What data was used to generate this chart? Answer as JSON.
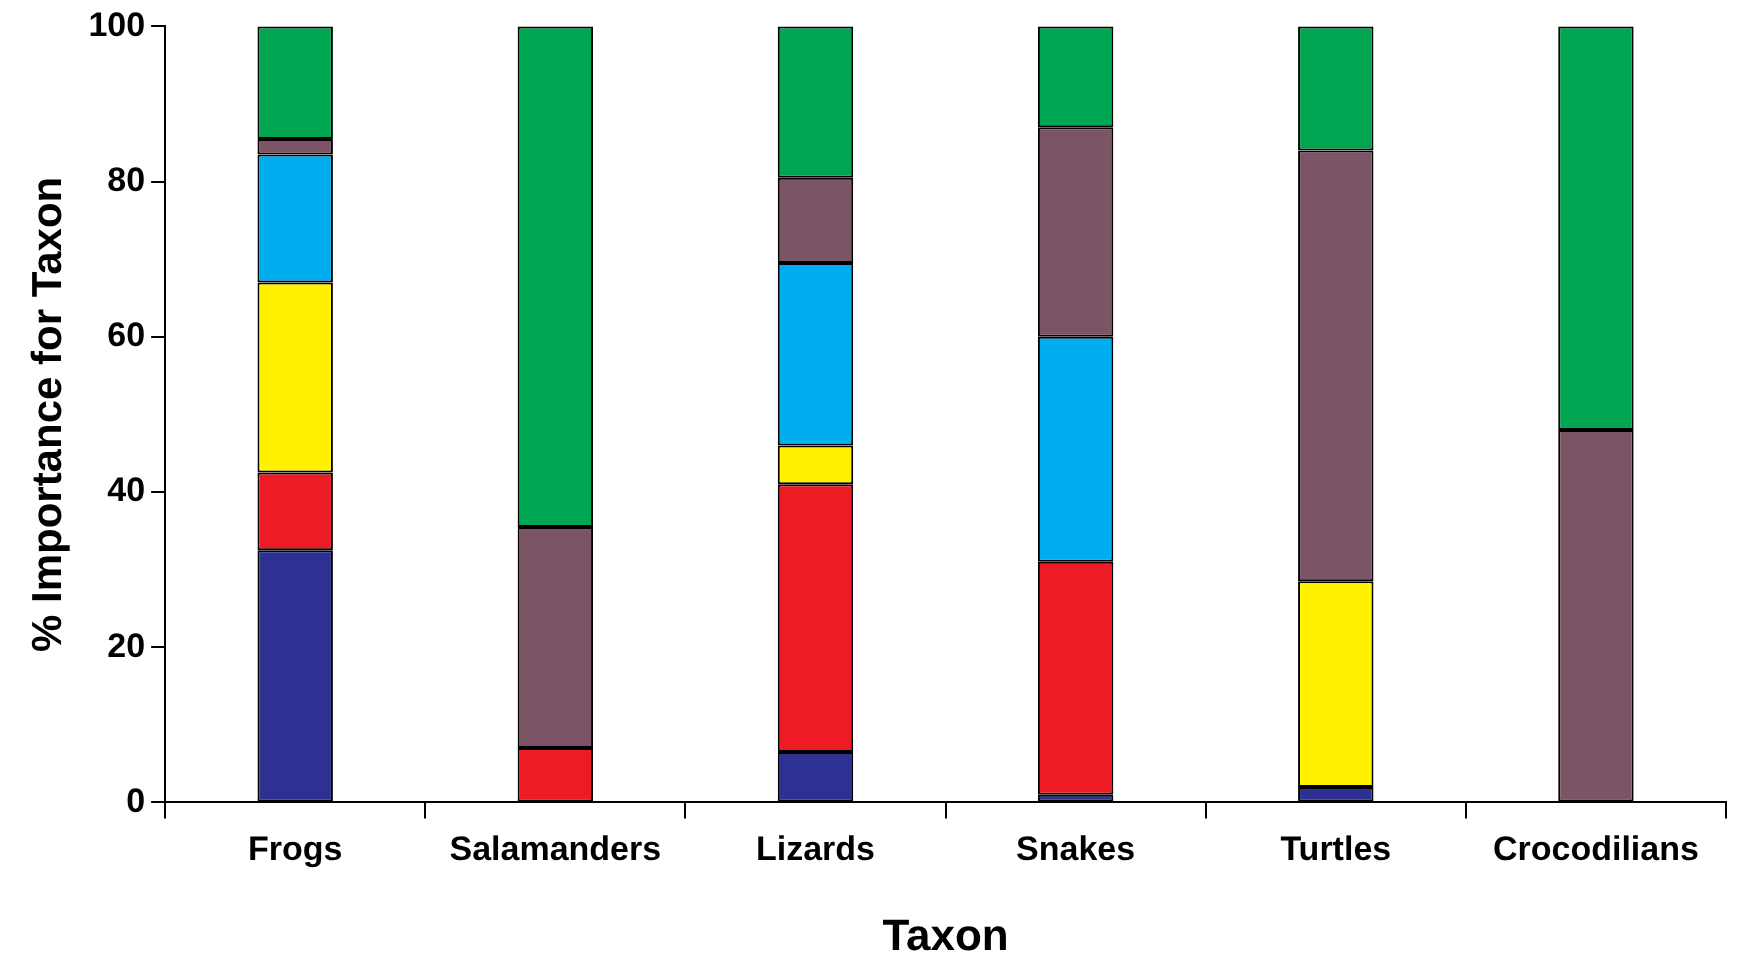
{
  "chart_data": {
    "type": "bar",
    "stacked": true,
    "xlabel": "Taxon",
    "ylabel": "% Importance for Taxon",
    "categories": [
      "Frogs",
      "Salamanders",
      "Lizards",
      "Snakes",
      "Turtles",
      "Crocodilians"
    ],
    "series": [
      {
        "color": "#2e3192",
        "values": [
          32.5,
          0,
          6.5,
          1,
          2,
          0
        ]
      },
      {
        "color": "#ed1c24",
        "values": [
          10,
          7,
          34.5,
          30,
          0,
          0
        ]
      },
      {
        "color": "#fff200",
        "values": [
          24.5,
          0,
          5,
          0,
          26.5,
          0
        ]
      },
      {
        "color": "#00aeef",
        "values": [
          16.5,
          0,
          23.5,
          29,
          0,
          0
        ]
      },
      {
        "color": "#7b5566",
        "values": [
          2,
          28.5,
          11,
          27,
          55.5,
          48
        ]
      },
      {
        "color": "#00a651",
        "values": [
          14.5,
          64.5,
          19.5,
          13,
          16,
          52
        ]
      }
    ],
    "ylim": [
      0,
      100
    ],
    "yticks": [
      0,
      20,
      40,
      60,
      80,
      100
    ],
    "grid": false,
    "legend": false
  }
}
